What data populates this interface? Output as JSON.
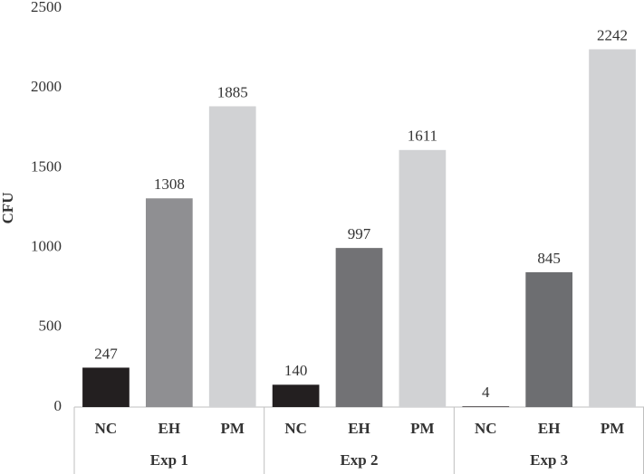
{
  "chart_data": {
    "type": "bar",
    "y_label": "CFU",
    "ylim": [
      0,
      2500
    ],
    "yticks": [
      0,
      500,
      1000,
      1500,
      2000,
      2500
    ],
    "groups": [
      {
        "name": "Exp 1",
        "categories": [
          "NC",
          "EH",
          "PM"
        ],
        "values": [
          247,
          1308,
          1885
        ],
        "colors": [
          "#231f20",
          "#8f8f92",
          "#d1d2d4"
        ]
      },
      {
        "name": "Exp 2",
        "categories": [
          "NC",
          "EH",
          "PM"
        ],
        "values": [
          140,
          997,
          1611
        ],
        "colors": [
          "#231f20",
          "#727275",
          "#d1d2d4"
        ]
      },
      {
        "name": "Exp 3",
        "categories": [
          "NC",
          "EH",
          "PM"
        ],
        "values": [
          4,
          845,
          2242
        ],
        "colors": [
          "#231f20",
          "#6d6e71",
          "#d1d2d4"
        ]
      }
    ]
  }
}
